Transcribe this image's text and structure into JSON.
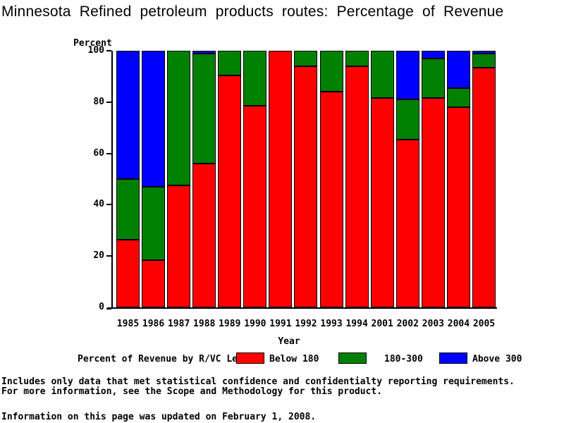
{
  "title": "Minnesota Refined petroleum products routes: Percentage of Revenue",
  "chart_data": {
    "type": "bar",
    "stacked": true,
    "title": "Minnesota Refined petroleum products routes: Percentage of Revenue",
    "ylabel": "Percent",
    "xlabel": "Year",
    "ylim": [
      0,
      100
    ],
    "yticks": [
      0,
      20,
      40,
      60,
      80,
      100
    ],
    "grid": false,
    "legend_position": "bottom",
    "legend_title": "Percent of Revenue by R/VC Level",
    "categories": [
      "1985",
      "1986",
      "1987",
      "1988",
      "1989",
      "1990",
      "1991",
      "1992",
      "1993",
      "1994",
      "2001",
      "2002",
      "2003",
      "2004",
      "2005"
    ],
    "series": [
      {
        "name": "Below 180",
        "color": "#ff0000",
        "values": [
          26.5,
          18.5,
          47.5,
          56,
          90.5,
          78.5,
          100,
          94,
          84,
          94,
          81.5,
          65.5,
          81.5,
          78,
          93.5
        ]
      },
      {
        "name": "180-300",
        "color": "#008000",
        "values": [
          23.5,
          28.5,
          52.5,
          43,
          9.5,
          21.5,
          0,
          6,
          16,
          6,
          18.5,
          15.5,
          15.5,
          7.5,
          5.5
        ]
      },
      {
        "name": "Above 300",
        "color": "#0000ff",
        "values": [
          50,
          53,
          0,
          1,
          0,
          0,
          0,
          0,
          0,
          0,
          0,
          19,
          3,
          14.5,
          1
        ]
      }
    ]
  },
  "footnotes": {
    "line1": "Includes only data that met statistical confidence and confidentialty reporting requirements.",
    "line2": "For more information, see the Scope and Methodology for this product.",
    "updated": "Information on this page was updated on February 1, 2008."
  }
}
